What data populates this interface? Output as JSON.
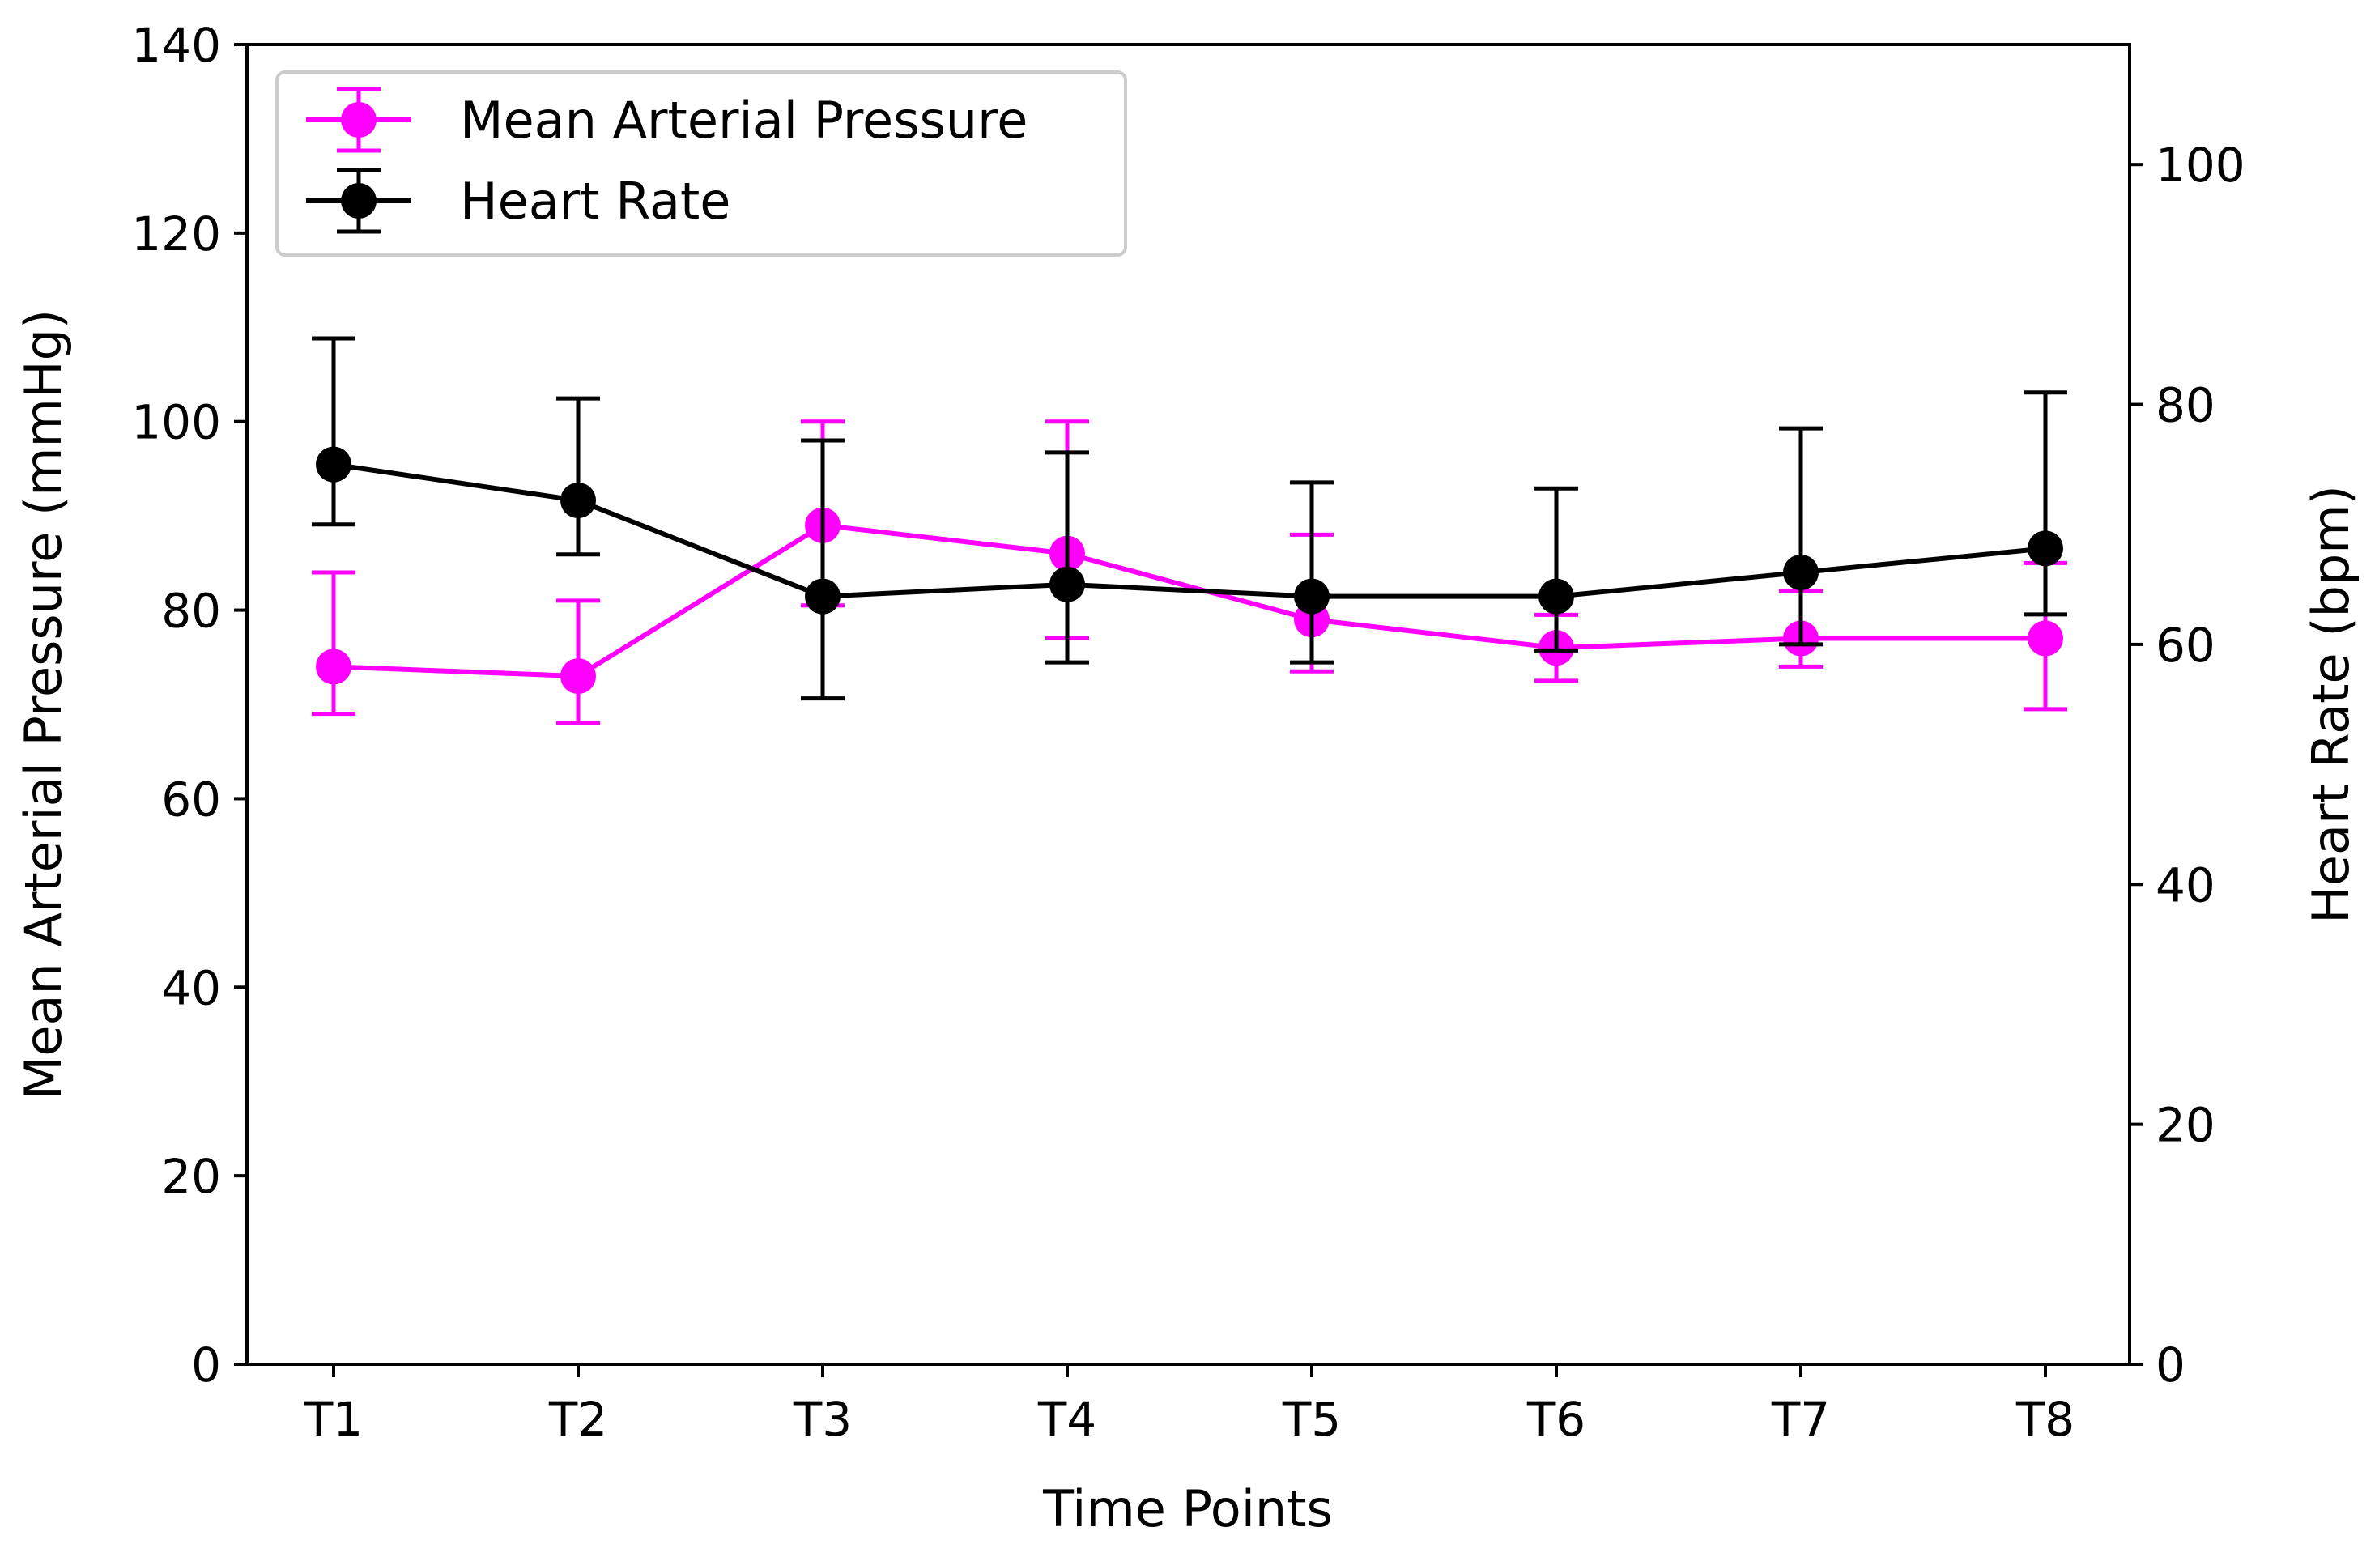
{
  "chart_data": {
    "type": "line",
    "title": "",
    "xlabel": "Time Points",
    "ylabel_left": "Mean Arterial Pressure (mmHg)",
    "ylabel_right": "Heart Rate (bpm)",
    "categories": [
      "T1",
      "T2",
      "T3",
      "T4",
      "T5",
      "T6",
      "T7",
      "T8"
    ],
    "ylim_left": [
      0,
      140
    ],
    "ylim_right": [
      0,
      110
    ],
    "yticks_left": [
      0,
      20,
      40,
      60,
      80,
      100,
      120,
      140
    ],
    "yticks_right": [
      0,
      20,
      40,
      60,
      80,
      100
    ],
    "grid": false,
    "legend_position": "top-left",
    "series": [
      {
        "name": "Mean Arterial Pressure",
        "axis": "left",
        "color": "#ff00ff",
        "values": [
          74,
          73,
          89,
          86,
          79,
          76,
          77,
          77
        ],
        "error_low": [
          69,
          68,
          80.5,
          77,
          73.5,
          72.5,
          74,
          69.5
        ],
        "error_high": [
          84,
          81,
          100,
          100,
          88,
          79.5,
          82,
          85
        ]
      },
      {
        "name": "Heart Rate",
        "axis": "right",
        "color": "#000000",
        "values": [
          75,
          72,
          64,
          65,
          64,
          64,
          66,
          68
        ],
        "error_low": [
          70,
          67.5,
          55.5,
          58.5,
          58.5,
          59.5,
          60,
          62.5
        ],
        "error_high": [
          85.5,
          80.5,
          77,
          76,
          73.5,
          73,
          78,
          81
        ]
      }
    ]
  }
}
